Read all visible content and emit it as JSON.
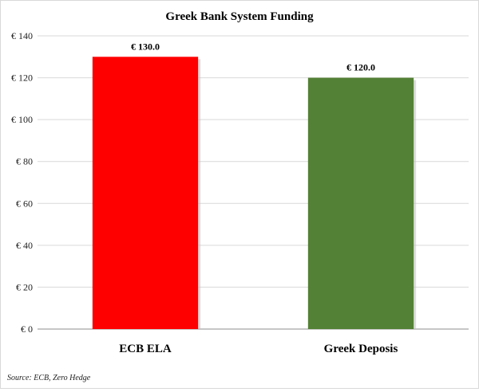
{
  "chart_data": {
    "type": "bar",
    "title": "Greek Bank System Funding",
    "categories": [
      "ECB ELA",
      "Greek Deposis"
    ],
    "values": [
      130.0,
      120.0
    ],
    "data_labels": [
      "€ 130.0",
      "€ 120.0"
    ],
    "colors": [
      "#ff0000",
      "#538135"
    ],
    "ylim": [
      0,
      140
    ],
    "yticks": [
      0,
      20,
      40,
      60,
      80,
      100,
      120,
      140
    ],
    "ytick_labels": [
      "€ 0",
      "€ 20",
      "€ 40",
      "€ 60",
      "€ 80",
      "€ 100",
      "€ 120",
      "€ 140"
    ],
    "grid": true,
    "legend": "none",
    "source": "Source: ECB, Zero Hedge"
  }
}
